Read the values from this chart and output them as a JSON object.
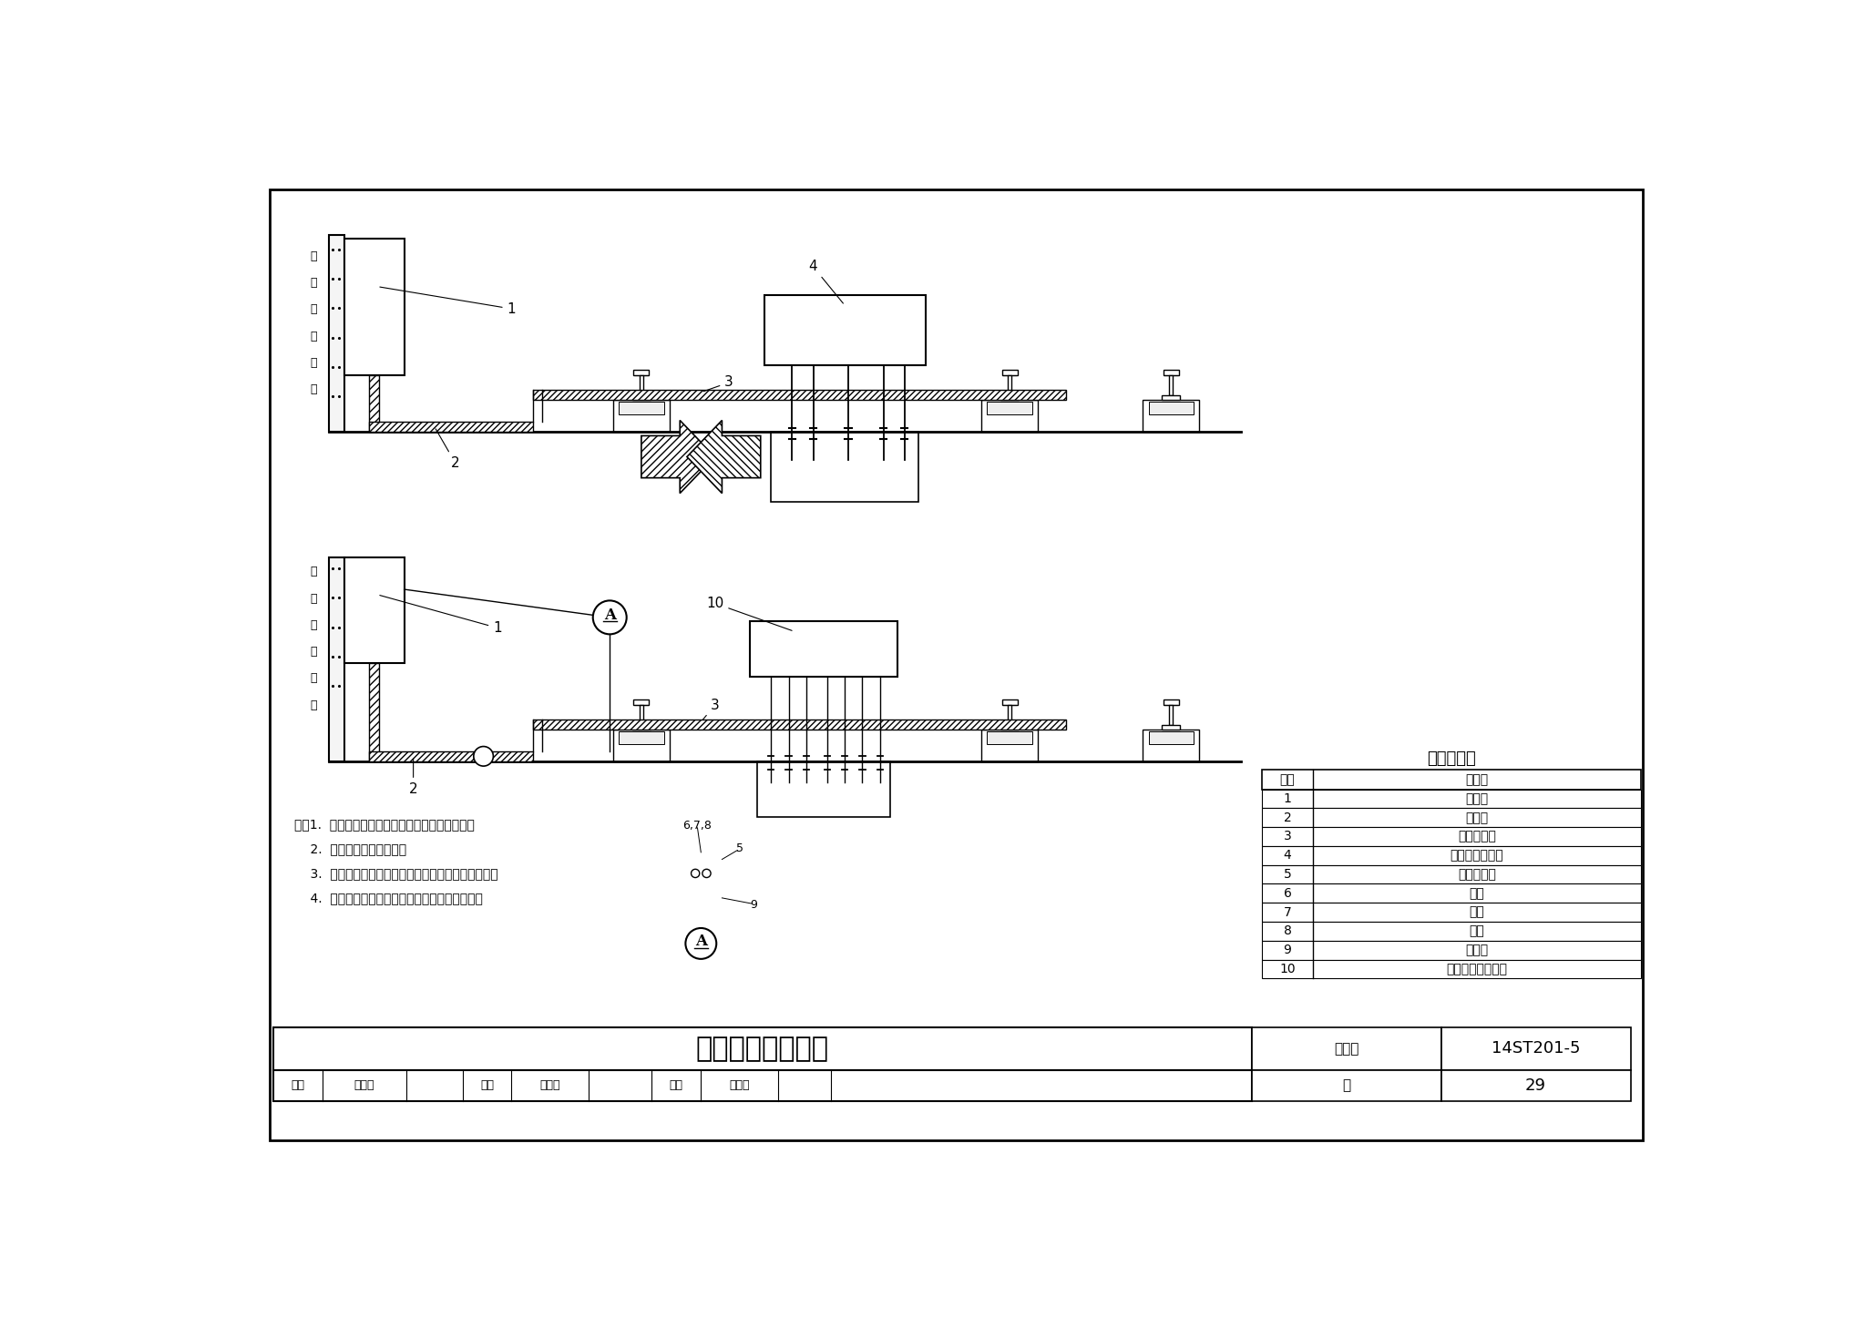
{
  "bg_color": "#ffffff",
  "title": "应答器电缆防护图",
  "fig_num": "14ST201-5",
  "page": "29",
  "table_title": "名称对照表",
  "table_headers": [
    "序号",
    "名　称"
  ],
  "table_rows": [
    [
      "1",
      "馈电盒"
    ],
    [
      "2",
      "欧姆卡"
    ],
    [
      "3",
      "橡胶防护管"
    ],
    [
      "4",
      "有源地面应答器"
    ],
    [
      "5",
      "橡胶防护管"
    ],
    [
      "6",
      "垫片"
    ],
    [
      "7",
      "螺母"
    ],
    [
      "8",
      "螺杆"
    ],
    [
      "9",
      "欧姆卡"
    ],
    [
      "10",
      "切换型无源应答器"
    ]
  ],
  "notes": [
    "注：1.  馈电盒密封装置应完整，防泄性能应良好。",
    "    2.  馈电盒体应接地良好。",
    "    3.  馈电盒应安装平稳、牢固，螺栓应紧固、无松动。",
    "    4.  电缆应采用橡胶管防护，并用卡具固定牢固。"
  ]
}
